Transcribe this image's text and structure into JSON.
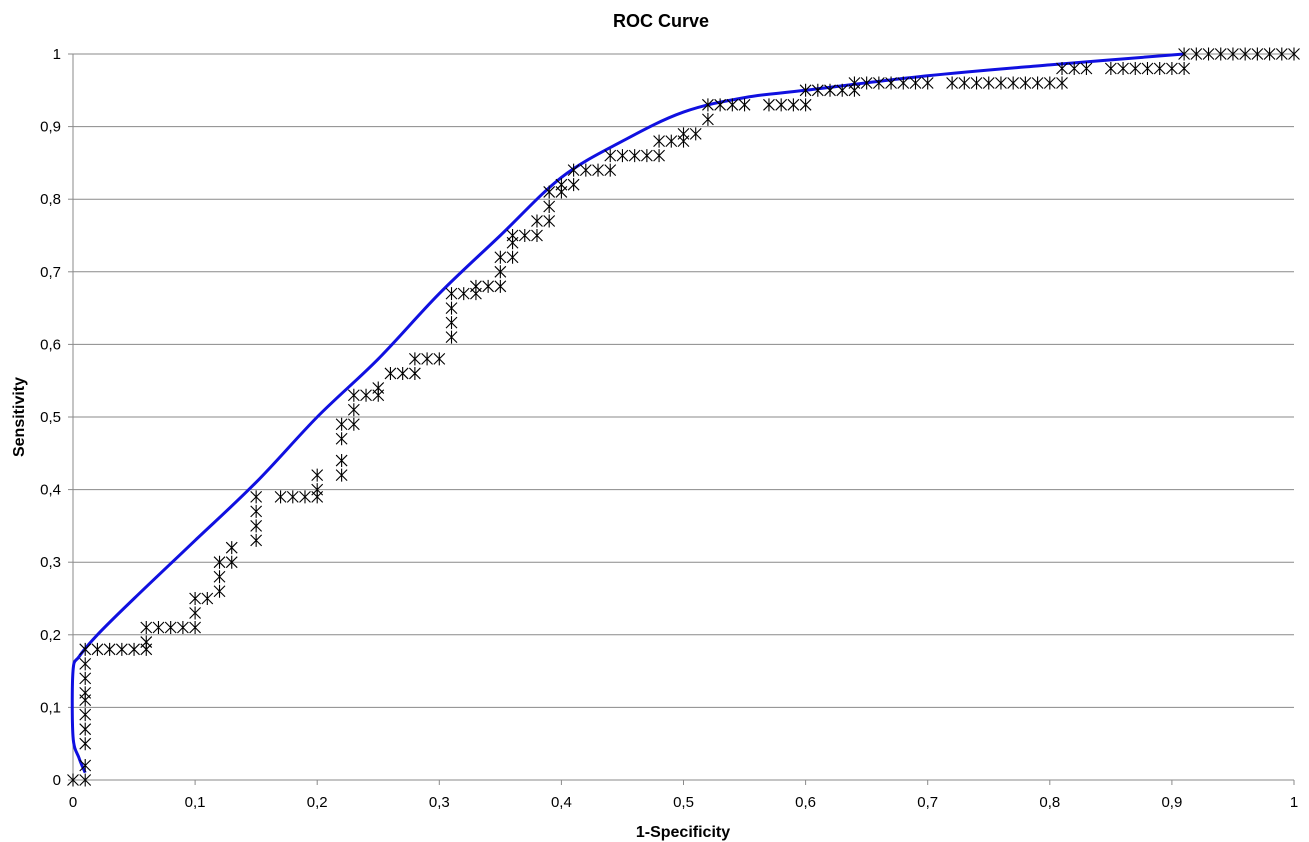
{
  "chart_data": {
    "type": "scatter",
    "title": "ROC Curve",
    "xlabel": "1-Specificity",
    "ylabel": "Sensitivity",
    "xlim": [
      0,
      1
    ],
    "ylim": [
      0,
      1
    ],
    "grid": "horizontal",
    "legend": "none",
    "x_ticks": [
      "0",
      "0,1",
      "0,2",
      "0,3",
      "0,4",
      "0,5",
      "0,6",
      "0,7",
      "0,8",
      "0,9",
      "1"
    ],
    "y_ticks": [
      "0",
      "0,1",
      "0,2",
      "0,3",
      "0,4",
      "0,5",
      "0,6",
      "0,7",
      "0,8",
      "0,9",
      "1"
    ],
    "colors": {
      "curve": "#1010e0",
      "markers": "#000000",
      "grid": "#8a8a8a"
    },
    "series": [
      {
        "kind": "scatter",
        "marker": "asterisk",
        "points": [
          [
            0,
            0
          ],
          [
            0.01,
            0
          ],
          [
            0.01,
            0.02
          ],
          [
            0.01,
            0.05
          ],
          [
            0.01,
            0.07
          ],
          [
            0.01,
            0.09
          ],
          [
            0.01,
            0.11
          ],
          [
            0.01,
            0.12
          ],
          [
            0.01,
            0.14
          ],
          [
            0.01,
            0.16
          ],
          [
            0.01,
            0.18
          ],
          [
            0.02,
            0.18
          ],
          [
            0.03,
            0.18
          ],
          [
            0.04,
            0.18
          ],
          [
            0.05,
            0.18
          ],
          [
            0.06,
            0.18
          ],
          [
            0.06,
            0.19
          ],
          [
            0.06,
            0.21
          ],
          [
            0.07,
            0.21
          ],
          [
            0.08,
            0.21
          ],
          [
            0.09,
            0.21
          ],
          [
            0.1,
            0.21
          ],
          [
            0.1,
            0.23
          ],
          [
            0.1,
            0.25
          ],
          [
            0.11,
            0.25
          ],
          [
            0.12,
            0.26
          ],
          [
            0.12,
            0.28
          ],
          [
            0.12,
            0.3
          ],
          [
            0.13,
            0.3
          ],
          [
            0.13,
            0.32
          ],
          [
            0.15,
            0.33
          ],
          [
            0.15,
            0.35
          ],
          [
            0.15,
            0.37
          ],
          [
            0.15,
            0.39
          ],
          [
            0.17,
            0.39
          ],
          [
            0.18,
            0.39
          ],
          [
            0.19,
            0.39
          ],
          [
            0.2,
            0.39
          ],
          [
            0.2,
            0.4
          ],
          [
            0.2,
            0.42
          ],
          [
            0.22,
            0.42
          ],
          [
            0.22,
            0.44
          ],
          [
            0.22,
            0.47
          ],
          [
            0.22,
            0.49
          ],
          [
            0.23,
            0.49
          ],
          [
            0.23,
            0.51
          ],
          [
            0.23,
            0.53
          ],
          [
            0.24,
            0.53
          ],
          [
            0.25,
            0.53
          ],
          [
            0.25,
            0.54
          ],
          [
            0.26,
            0.56
          ],
          [
            0.27,
            0.56
          ],
          [
            0.28,
            0.56
          ],
          [
            0.28,
            0.58
          ],
          [
            0.29,
            0.58
          ],
          [
            0.3,
            0.58
          ],
          [
            0.31,
            0.61
          ],
          [
            0.31,
            0.63
          ],
          [
            0.31,
            0.65
          ],
          [
            0.31,
            0.67
          ],
          [
            0.32,
            0.67
          ],
          [
            0.33,
            0.67
          ],
          [
            0.33,
            0.68
          ],
          [
            0.34,
            0.68
          ],
          [
            0.35,
            0.68
          ],
          [
            0.35,
            0.7
          ],
          [
            0.35,
            0.72
          ],
          [
            0.36,
            0.72
          ],
          [
            0.36,
            0.74
          ],
          [
            0.36,
            0.75
          ],
          [
            0.37,
            0.75
          ],
          [
            0.38,
            0.75
          ],
          [
            0.38,
            0.77
          ],
          [
            0.39,
            0.77
          ],
          [
            0.39,
            0.79
          ],
          [
            0.39,
            0.81
          ],
          [
            0.4,
            0.81
          ],
          [
            0.4,
            0.82
          ],
          [
            0.41,
            0.82
          ],
          [
            0.41,
            0.84
          ],
          [
            0.42,
            0.84
          ],
          [
            0.43,
            0.84
          ],
          [
            0.44,
            0.84
          ],
          [
            0.44,
            0.86
          ],
          [
            0.45,
            0.86
          ],
          [
            0.46,
            0.86
          ],
          [
            0.47,
            0.86
          ],
          [
            0.48,
            0.86
          ],
          [
            0.48,
            0.88
          ],
          [
            0.49,
            0.88
          ],
          [
            0.5,
            0.88
          ],
          [
            0.5,
            0.89
          ],
          [
            0.51,
            0.89
          ],
          [
            0.52,
            0.91
          ],
          [
            0.52,
            0.93
          ],
          [
            0.53,
            0.93
          ],
          [
            0.54,
            0.93
          ],
          [
            0.55,
            0.93
          ],
          [
            0.57,
            0.93
          ],
          [
            0.58,
            0.93
          ],
          [
            0.59,
            0.93
          ],
          [
            0.6,
            0.93
          ],
          [
            0.6,
            0.95
          ],
          [
            0.61,
            0.95
          ],
          [
            0.62,
            0.95
          ],
          [
            0.63,
            0.95
          ],
          [
            0.64,
            0.95
          ],
          [
            0.64,
            0.96
          ],
          [
            0.65,
            0.96
          ],
          [
            0.66,
            0.96
          ],
          [
            0.67,
            0.96
          ],
          [
            0.68,
            0.96
          ],
          [
            0.69,
            0.96
          ],
          [
            0.7,
            0.96
          ],
          [
            0.72,
            0.96
          ],
          [
            0.73,
            0.96
          ],
          [
            0.74,
            0.96
          ],
          [
            0.75,
            0.96
          ],
          [
            0.76,
            0.96
          ],
          [
            0.77,
            0.96
          ],
          [
            0.78,
            0.96
          ],
          [
            0.79,
            0.96
          ],
          [
            0.8,
            0.96
          ],
          [
            0.81,
            0.96
          ],
          [
            0.81,
            0.98
          ],
          [
            0.82,
            0.98
          ],
          [
            0.83,
            0.98
          ],
          [
            0.85,
            0.98
          ],
          [
            0.86,
            0.98
          ],
          [
            0.87,
            0.98
          ],
          [
            0.88,
            0.98
          ],
          [
            0.89,
            0.98
          ],
          [
            0.9,
            0.98
          ],
          [
            0.91,
            0.98
          ],
          [
            0.91,
            1
          ],
          [
            0.92,
            1
          ],
          [
            0.93,
            1
          ],
          [
            0.94,
            1
          ],
          [
            0.95,
            1
          ],
          [
            0.96,
            1
          ],
          [
            0.97,
            1
          ],
          [
            0.98,
            1
          ],
          [
            0.99,
            1
          ],
          [
            1,
            1
          ]
        ]
      },
      {
        "kind": "line",
        "points": [
          [
            0.01,
            0.01
          ],
          [
            0.005,
            0.03
          ],
          [
            0,
            0.06
          ],
          [
            0,
            0.15
          ],
          [
            0.005,
            0.17
          ],
          [
            0.02,
            0.2
          ],
          [
            0.05,
            0.25
          ],
          [
            0.1,
            0.33
          ],
          [
            0.15,
            0.41
          ],
          [
            0.2,
            0.5
          ],
          [
            0.25,
            0.58
          ],
          [
            0.3,
            0.67
          ],
          [
            0.35,
            0.75
          ],
          [
            0.4,
            0.83
          ],
          [
            0.45,
            0.88
          ],
          [
            0.5,
            0.92
          ],
          [
            0.55,
            0.94
          ],
          [
            0.6,
            0.95
          ],
          [
            0.7,
            0.97
          ],
          [
            0.8,
            0.985
          ],
          [
            0.91,
            1
          ]
        ]
      }
    ]
  }
}
